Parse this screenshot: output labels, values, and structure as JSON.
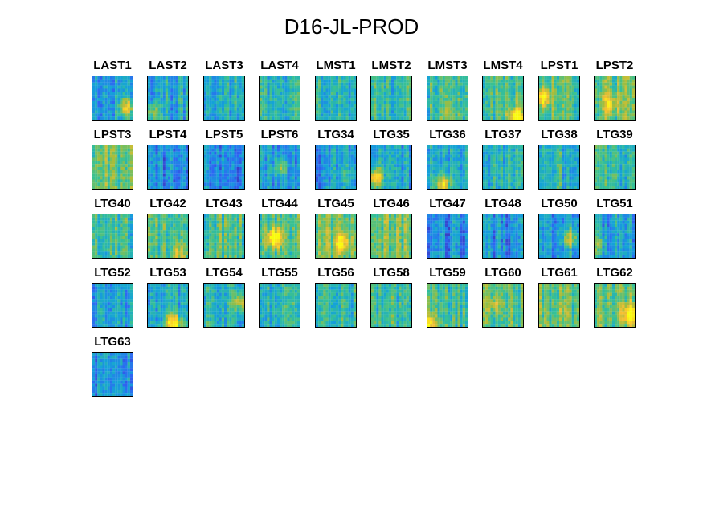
{
  "chart_data": {
    "type": "heatmap",
    "title": "D16-JL-PROD",
    "grid_columns": 10,
    "colormap": [
      "#3e26a8",
      "#2e66f3",
      "#14a3d8",
      "#38c193",
      "#a3bd3c",
      "#f8bf31",
      "#f9fb0e"
    ],
    "panels": [
      "LAST1",
      "LAST2",
      "LAST3",
      "LAST4",
      "LMST1",
      "LMST2",
      "LMST3",
      "LMST4",
      "LPST1",
      "LPST2",
      "LPST3",
      "LPST4",
      "LPST5",
      "LPST6",
      "LTG34",
      "LTG35",
      "LTG36",
      "LTG37",
      "LTG38",
      "LTG39",
      "LTG40",
      "LTG42",
      "LTG43",
      "LTG44",
      "LTG45",
      "LTG46",
      "LTG47",
      "LTG48",
      "LTG50",
      "LTG51",
      "LTG52",
      "LTG53",
      "LTG54",
      "LTG55",
      "LTG56",
      "LTG58",
      "LTG59",
      "LTG60",
      "LTG61",
      "LTG62",
      "LTG63"
    ]
  }
}
